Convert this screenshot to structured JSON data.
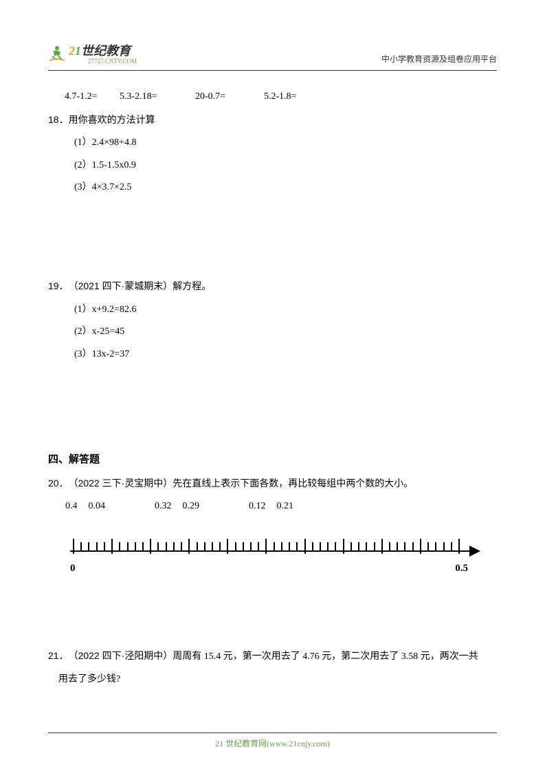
{
  "header": {
    "logo_brand": "21世纪教育",
    "logo_url": "27727.CNTV.COM",
    "right_text": "中小学教育资源及组卷应用平台"
  },
  "q17_row": {
    "eq1": "4.7-1.2=",
    "eq2": "5.3-2.18=",
    "eq3": "20-0.7=",
    "eq4": "5.2-1.8="
  },
  "q18": {
    "num": "18．",
    "text": "用你喜欢的方法计算",
    "items": [
      "(1）2.4×98+4.8",
      "(2）1.5-1.5x0.9",
      "(3）4×3.7×2.5"
    ]
  },
  "q19": {
    "num": "19．",
    "source": "（2021 四下·蒙城期末）",
    "text": "解方程。",
    "items": [
      "(1）x+9.2=82.6",
      "(2）x-25=45",
      "(3）13x-2=37"
    ]
  },
  "section4": "四、解答题",
  "q20": {
    "num": "20．",
    "source": "（2022 三下·灵宝期中）",
    "text": "先在直线上表示下面各数，再比较每组中两个数的大小。",
    "numbers": [
      "0.4",
      "0.04",
      "",
      "0.32",
      "0.29",
      "",
      "0.12",
      "0.21"
    ],
    "axis": {
      "start_label": "0",
      "end_label": "0.5",
      "tick_count": 51,
      "tall_every": 5,
      "colors": {
        "line": "#000000"
      }
    }
  },
  "q21": {
    "num": "21．",
    "source": "（2022 四下·泾阳期中）",
    "text_part1": "周周有 15.4 元，第一次用去了 4.76 元，第二次用去了 3.58 元，两次一共",
    "text_part2": "用去了多少钱?"
  },
  "footer": {
    "text_prefix": "21 ",
    "text_main": "世纪教育网(www.21cnjy.com)",
    "color": "#5fa845"
  }
}
